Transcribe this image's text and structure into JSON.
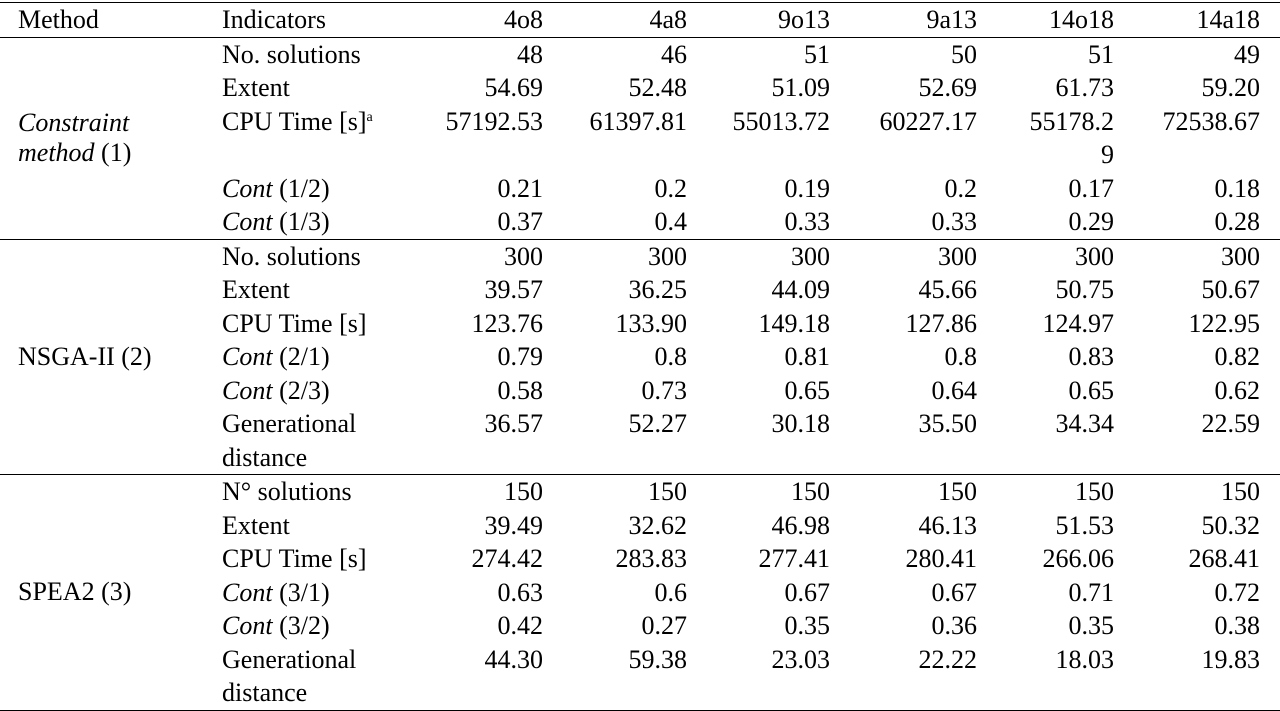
{
  "table": {
    "header": [
      "Method",
      "Indicators",
      "4o8",
      "4a8",
      "9o13",
      "9a13",
      "14o18",
      "14a18"
    ],
    "groups": [
      {
        "method": "Constraint method",
        "method_ref": "(1)",
        "method_italic": true,
        "rows": [
          {
            "indicator": "No. solutions",
            "values": [
              "48",
              "46",
              "51",
              "50",
              "51",
              "49"
            ]
          },
          {
            "indicator": "Extent",
            "values": [
              "54.69",
              "52.48",
              "51.09",
              "52.69",
              "61.73",
              "59.20"
            ]
          },
          {
            "indicator": "CPU Time [s]",
            "indicator_note": "a",
            "values": [
              "57192.53",
              "61397.81",
              "55013.72",
              "60227.17",
              "55178.29",
              "72538.67"
            ]
          },
          {
            "indicator": "Cont",
            "indicator_ref": "(1/2)",
            "indicator_italic": true,
            "values": [
              "0.21",
              "0.2",
              "0.19",
              "0.2",
              "0.17",
              "0.18"
            ]
          },
          {
            "indicator": "Cont",
            "indicator_ref": "(1/3)",
            "indicator_italic": true,
            "values": [
              "0.37",
              "0.4",
              "0.33",
              "0.33",
              "0.29",
              "0.28"
            ]
          }
        ]
      },
      {
        "method": "NSGA-II",
        "method_ref": "(2)",
        "method_italic": false,
        "rows": [
          {
            "indicator": "No. solutions",
            "values": [
              "300",
              "300",
              "300",
              "300",
              "300",
              "300"
            ]
          },
          {
            "indicator": "Extent",
            "values": [
              "39.57",
              "36.25",
              "44.09",
              "45.66",
              "50.75",
              "50.67"
            ]
          },
          {
            "indicator": "CPU Time [s]",
            "values": [
              "123.76",
              "133.90",
              "149.18",
              "127.86",
              "124.97",
              "122.95"
            ]
          },
          {
            "indicator": "Cont",
            "indicator_ref": "(2/1)",
            "indicator_italic": true,
            "values": [
              "0.79",
              "0.8",
              "0.81",
              "0.8",
              "0.83",
              "0.82"
            ]
          },
          {
            "indicator": "Cont",
            "indicator_ref": "(2/3)",
            "indicator_italic": true,
            "values": [
              "0.58",
              "0.73",
              "0.65",
              "0.64",
              "0.65",
              "0.62"
            ]
          },
          {
            "indicator": "Generational distance",
            "values": [
              "36.57",
              "52.27",
              "30.18",
              "35.50",
              "34.34",
              "22.59"
            ]
          }
        ]
      },
      {
        "method": "SPEA2",
        "method_ref": "(3)",
        "method_italic": false,
        "rows": [
          {
            "indicator": "N° solutions",
            "values": [
              "150",
              "150",
              "150",
              "150",
              "150",
              "150"
            ]
          },
          {
            "indicator": "Extent",
            "values": [
              "39.49",
              "32.62",
              "46.98",
              "46.13",
              "51.53",
              "50.32"
            ]
          },
          {
            "indicator": "CPU Time [s]",
            "values": [
              "274.42",
              "283.83",
              "277.41",
              "280.41",
              "266.06",
              "268.41"
            ]
          },
          {
            "indicator": "Cont",
            "indicator_ref": "(3/1)",
            "indicator_italic": true,
            "values": [
              "0.63",
              "0.6",
              "0.67",
              "0.67",
              "0.71",
              "0.72"
            ]
          },
          {
            "indicator": "Cont",
            "indicator_ref": "(3/2)",
            "indicator_italic": true,
            "values": [
              "0.42",
              "0.27",
              "0.35",
              "0.36",
              "0.35",
              "0.38"
            ]
          },
          {
            "indicator": "Generational distance",
            "values": [
              "44.30",
              "59.38",
              "23.03",
              "22.22",
              "18.03",
              "19.83"
            ]
          }
        ]
      }
    ]
  }
}
